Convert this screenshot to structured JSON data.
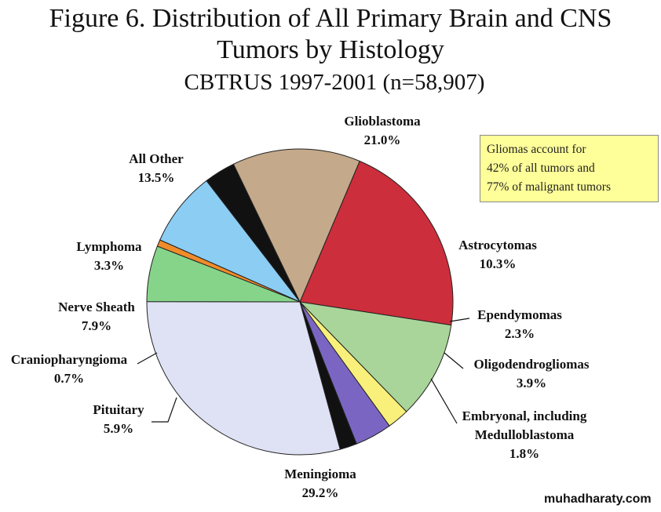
{
  "title_lines": [
    "Figure 6. Distribution of All Primary Brain and CNS",
    "Tumors by Histology"
  ],
  "subtitle": "CBTRUS 1997-2001 (n=58,907)",
  "callout_lines": [
    "Gliomas account for",
    "42% of all tumors and",
    "77% of malignant tumors"
  ],
  "watermark": "muhadharaty.com",
  "colors": {
    "callout_background": "#ffff99"
  },
  "chart_data": {
    "type": "pie",
    "start_angle_deg": 293,
    "direction": "clockwise",
    "slices": [
      {
        "label": "Glioblastoma",
        "value": 21.0,
        "value_text": "21.0%",
        "color": "#cc2e3b"
      },
      {
        "label": "Astrocytomas",
        "value": 10.3,
        "value_text": "10.3%",
        "color": "#a9d59a"
      },
      {
        "label": "Ependymomas",
        "value": 2.3,
        "value_text": "2.3%",
        "color": "#f8f07a"
      },
      {
        "label": "Oligodendrogliomas",
        "value": 3.9,
        "value_text": "3.9%",
        "color": "#7a66c2"
      },
      {
        "label": "Embryonal, including Medulloblastoma",
        "label_lines": [
          "Embryonal, including",
          "Medulloblastoma"
        ],
        "value": 1.8,
        "value_text": "1.8%",
        "color": "#111111"
      },
      {
        "label": "Meningioma",
        "value": 29.2,
        "value_text": "29.2%",
        "color": "#dfe2f4"
      },
      {
        "label": "Pituitary",
        "value": 5.9,
        "value_text": "5.9%",
        "color": "#86d48a"
      },
      {
        "label": "Craniopharyngioma",
        "value": 0.7,
        "value_text": "0.7%",
        "color": "#f08c2a"
      },
      {
        "label": "Nerve Sheath",
        "value": 7.9,
        "value_text": "7.9%",
        "color": "#8ccdf3"
      },
      {
        "label": "Lymphoma",
        "value": 3.3,
        "value_text": "3.3%",
        "color": "#111111"
      },
      {
        "label": "All Other",
        "value": 13.5,
        "value_text": "13.5%",
        "color": "#c4a98a"
      }
    ]
  }
}
